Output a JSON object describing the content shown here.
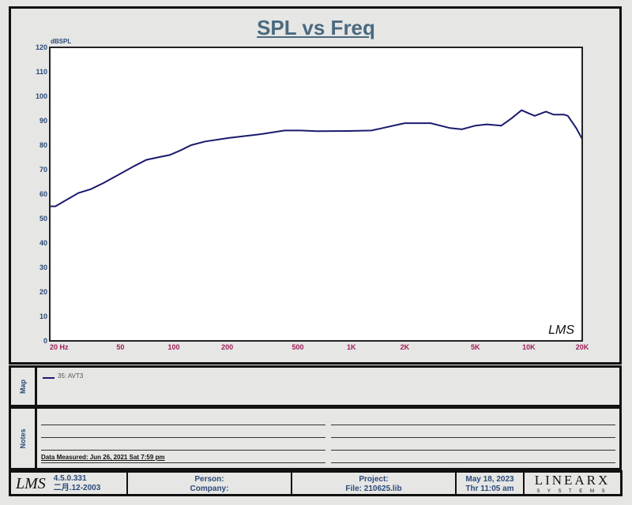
{
  "chart_data": {
    "type": "line",
    "title": "SPL vs Freq",
    "ylabel": "dBSPL",
    "xlabel": "",
    "xscale": "log",
    "xlim": [
      20,
      20000
    ],
    "ylim": [
      0,
      120
    ],
    "grid": true,
    "yticks": [
      0,
      10,
      20,
      30,
      40,
      50,
      60,
      70,
      80,
      90,
      100,
      110,
      120
    ],
    "xticks": [
      {
        "v": 20,
        "l": "20  Hz"
      },
      {
        "v": 50,
        "l": "50"
      },
      {
        "v": 100,
        "l": "100"
      },
      {
        "v": 200,
        "l": "200"
      },
      {
        "v": 500,
        "l": "500"
      },
      {
        "v": 1000,
        "l": "1K"
      },
      {
        "v": 2000,
        "l": "2K"
      },
      {
        "v": 5000,
        "l": "5K"
      },
      {
        "v": 10000,
        "l": "10K"
      },
      {
        "v": 20000,
        "l": "20K"
      }
    ],
    "series": [
      {
        "name": "35: AVT3",
        "color": "#1a1a6e",
        "x": [
          20,
          21.5,
          26,
          29,
          34,
          40,
          49,
          60,
          70,
          81,
          95,
          110,
          125,
          150,
          205,
          310,
          420,
          520,
          640,
          960,
          1300,
          1500,
          2000,
          2800,
          3600,
          4200,
          5000,
          5800,
          7000,
          8000,
          9100,
          10000,
          10800,
          12500,
          13800,
          15800,
          16600,
          18500,
          20000
        ],
        "y": [
          55,
          55,
          58.5,
          60.5,
          62,
          64.5,
          68,
          71.5,
          74,
          75,
          76,
          78,
          80,
          81.5,
          83,
          84.5,
          86,
          86,
          85.7,
          85.8,
          86,
          87,
          89,
          89,
          87,
          86.5,
          88,
          88.5,
          88,
          91,
          94.3,
          93,
          92,
          93.7,
          92.5,
          92.5,
          92,
          87,
          82.5
        ]
      }
    ]
  },
  "watermark": "LMS",
  "map": {
    "label": "Map",
    "legend": "35: AVT3"
  },
  "notes": {
    "label": "Notes",
    "measured": "Data Measured: Jun 26, 2021  Sat  7:59 pm"
  },
  "footer": {
    "logo": "LMS",
    "version": "4.5.0.331",
    "build_date": "二月.12-2003",
    "person": "Person:",
    "company": "Company:",
    "project": "Project:",
    "file": "File: 210625.lib",
    "date": "May 18, 2023",
    "time": "Thr 11:05 am",
    "brand": "LINEARX",
    "brand_sub": "S Y S T E M S"
  }
}
